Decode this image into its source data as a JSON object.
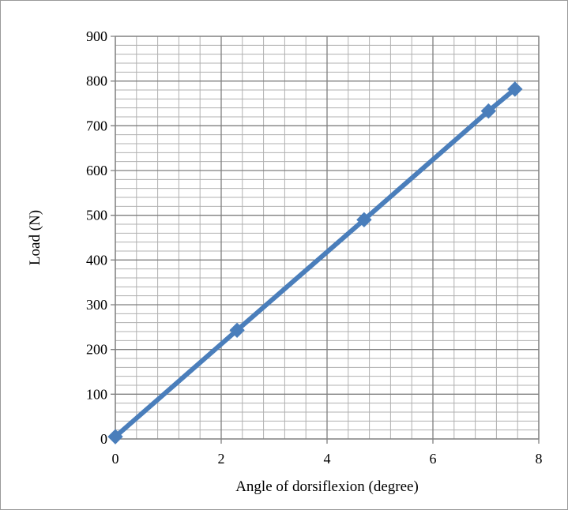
{
  "chart_data": {
    "type": "line",
    "title": "",
    "xlabel": "Angle of dorsiflexion (degree)",
    "ylabel": "Load (N)",
    "xlim": [
      0,
      8
    ],
    "ylim": [
      0,
      900
    ],
    "x_ticks": [
      "0",
      "2",
      "4",
      "6",
      "8"
    ],
    "y_ticks": [
      "0",
      "100",
      "200",
      "300",
      "400",
      "500",
      "600",
      "700",
      "800",
      "900"
    ],
    "x_minor_step": 0.4,
    "y_minor_step": 20,
    "grid": true,
    "legend": "none",
    "series": [
      {
        "marker": "diamond",
        "color": "#4a7ebb",
        "points": [
          {
            "x": 0,
            "y": 5
          },
          {
            "x": 2.3,
            "y": 243
          },
          {
            "x": 4.7,
            "y": 490
          },
          {
            "x": 7.05,
            "y": 733
          },
          {
            "x": 7.55,
            "y": 782
          }
        ]
      }
    ]
  }
}
